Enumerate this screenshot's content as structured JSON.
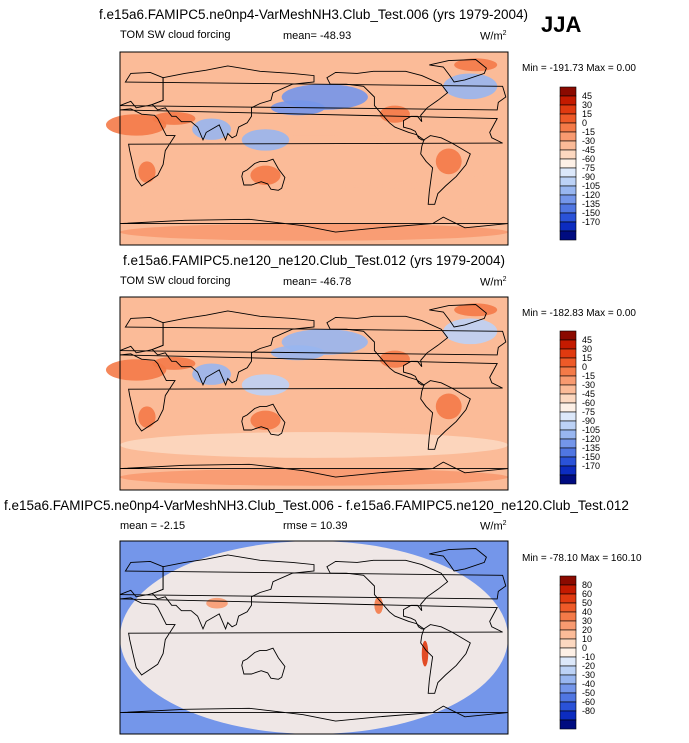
{
  "season": "JJA",
  "chart_data": [
    {
      "type": "heatmap",
      "title": "f.e15a6.FAMIPC5.ne0np4-VarMeshNH3.Club_Test.006 (yrs 1979-2004)",
      "variable": "TOM SW cloud forcing",
      "mean_text": "mean= -48.93",
      "units": "W/m",
      "units_sup": "2",
      "minmax_text": "Min = -191.73 Max =   0.00",
      "colorbar_labels": [
        "45",
        "30",
        "15",
        "0",
        "-15",
        "-30",
        "-45",
        "-60",
        "-75",
        "-90",
        "-105",
        "-120",
        "-135",
        "-150",
        "-170"
      ],
      "colorbar_colors": [
        "#8b0a00",
        "#c41a00",
        "#e03a10",
        "#ee5a28",
        "#f47a48",
        "#f89a70",
        "#fbbb98",
        "#fcd8c0",
        "#fdf0e6",
        "#dce8fa",
        "#bcd2f6",
        "#98b6f0",
        "#7496ea",
        "#5076e2",
        "#2a52d8",
        "#0c2cc0",
        "#000c80"
      ],
      "region_values": {
        "north_pacific": -120,
        "north_atlantic": -105,
        "southern_ocean": -40,
        "tropical_west_pacific": -105,
        "indian_monsoon": -110,
        "subtropics": -30,
        "deserts": -10,
        "antarctica": -15
      }
    },
    {
      "type": "heatmap",
      "title": "f.e15a6.FAMIPC5.ne120_ne120.Club_Test.012 (yrs 1979-2004)",
      "variable": "TOM SW cloud forcing",
      "mean_text": "mean= -46.78",
      "units": "W/m",
      "units_sup": "2",
      "minmax_text": "Min = -182.83 Max =   0.00",
      "colorbar_labels": [
        "45",
        "30",
        "15",
        "0",
        "-15",
        "-30",
        "-45",
        "-60",
        "-75",
        "-90",
        "-105",
        "-120",
        "-135",
        "-150",
        "-170"
      ],
      "colorbar_colors": [
        "#8b0a00",
        "#c41a00",
        "#e03a10",
        "#ee5a28",
        "#f47a48",
        "#f89a70",
        "#fbbb98",
        "#fcd8c0",
        "#fdf0e6",
        "#dce8fa",
        "#bcd2f6",
        "#98b6f0",
        "#7496ea",
        "#5076e2",
        "#2a52d8",
        "#0c2cc0",
        "#000c80"
      ],
      "region_values": {
        "north_pacific": -115,
        "north_atlantic": -100,
        "southern_ocean": -45,
        "tropical_west_pacific": -100,
        "indian_monsoon": -105,
        "subtropics": -30,
        "deserts": -10,
        "antarctica": -20
      }
    },
    {
      "type": "heatmap",
      "title": "f.e15a6.FAMIPC5.ne0np4-VarMeshNH3.Club_Test.006 - f.e15a6.FAMIPC5.ne120_ne120.Club_Test.012",
      "mean_text": "mean =  -2.15",
      "rmse_text": "rmse =  10.39",
      "units": "W/m",
      "units_sup": "2",
      "minmax_text": "Min = -78.10 Max = 160.10",
      "colorbar_labels": [
        "80",
        "60",
        "50",
        "40",
        "30",
        "20",
        "10",
        "0",
        "-10",
        "-20",
        "-30",
        "-40",
        "-50",
        "-60",
        "-80"
      ],
      "colorbar_colors": [
        "#8b0a00",
        "#c41a00",
        "#e03a10",
        "#ee5a28",
        "#f47a48",
        "#f89a70",
        "#fbbb98",
        "#fcd8c0",
        "#fdf0e6",
        "#dce8fa",
        "#bcd2f6",
        "#98b6f0",
        "#7496ea",
        "#5076e2",
        "#2a52d8",
        "#0c2cc0",
        "#000c80"
      ],
      "region_values": {
        "general": -5,
        "peru_coast": 60,
        "california_coast": 40,
        "tibet": 30
      }
    }
  ]
}
